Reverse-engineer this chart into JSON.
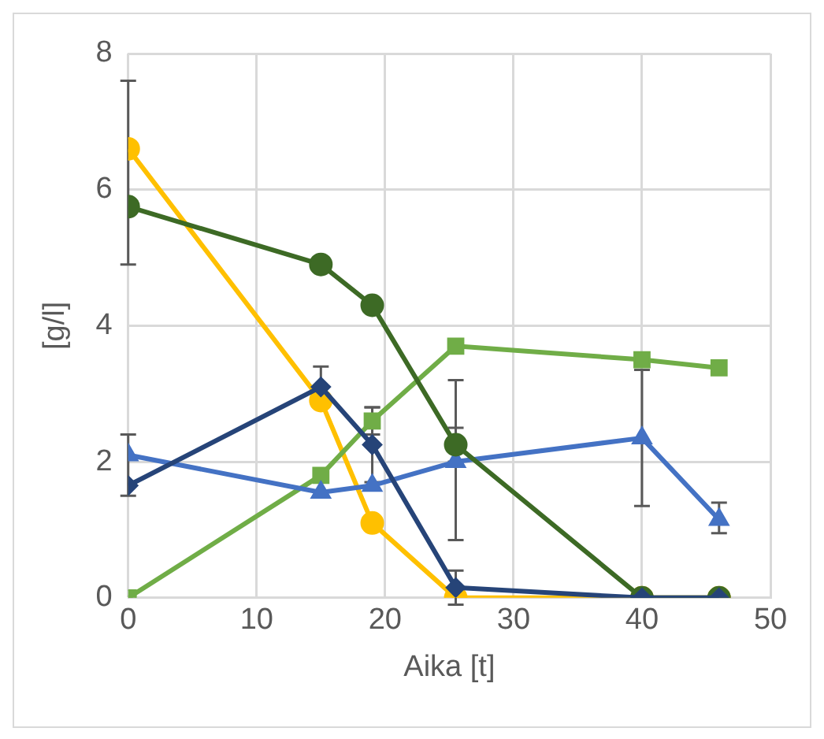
{
  "chart_data": {
    "type": "line",
    "xlabel": "Aika [t]",
    "ylabel": "[g/l]",
    "x": [
      0,
      15,
      19,
      25.5,
      40,
      46
    ],
    "xlim": [
      0,
      50
    ],
    "xticks": [
      0,
      10,
      20,
      30,
      40,
      50
    ],
    "ylim": [
      0,
      8
    ],
    "yticks": [
      0,
      2,
      4,
      6,
      8
    ],
    "grid": true,
    "legend": false,
    "series": [
      {
        "color": "#ffc000",
        "marker": "circle",
        "values": [
          6.6,
          2.9,
          1.1,
          0,
          0,
          0
        ]
      },
      {
        "color": "#70ad47",
        "marker": "square",
        "values": [
          0,
          1.8,
          2.6,
          3.7,
          3.5,
          3.38
        ],
        "errors": [
          null,
          null,
          0.2,
          null,
          null,
          null
        ]
      },
      {
        "color": "#4472c4",
        "marker": "triangle",
        "values": [
          2.1,
          1.55,
          1.65,
          2.0,
          2.35,
          1.15
        ],
        "errors": [
          [
            1.5,
            2.4
          ],
          null,
          null,
          [
            0.85,
            3.2
          ],
          1.0,
          [
            0.95,
            1.4
          ]
        ]
      },
      {
        "color": "#3d6a25",
        "marker": "circle",
        "values": [
          5.75,
          4.9,
          4.3,
          2.25,
          0,
          0
        ],
        "errors": [
          [
            4.9,
            7.6
          ],
          null,
          null,
          0.25,
          null,
          null
        ]
      },
      {
        "color": "#264478",
        "marker": "diamond",
        "values": [
          1.65,
          3.1,
          2.25,
          0.15,
          0,
          0
        ],
        "errors": [
          null,
          0.3,
          0.55,
          0.25,
          null,
          null
        ]
      }
    ]
  }
}
